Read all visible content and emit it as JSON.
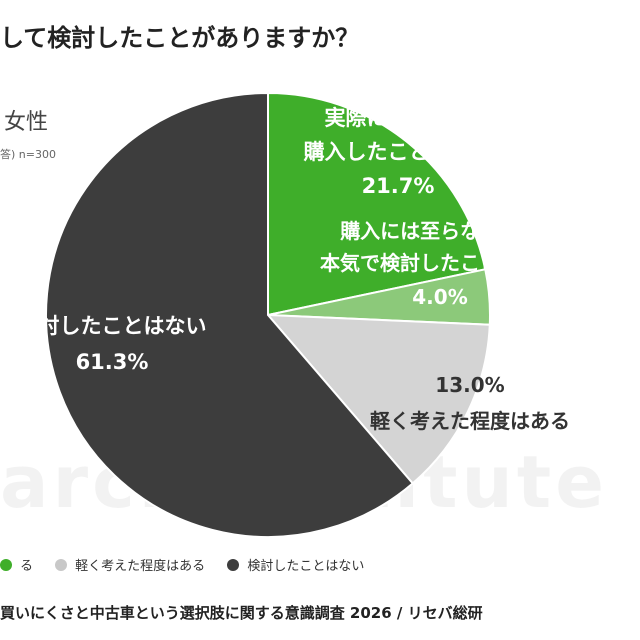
{
  "title": "して検討したことがありますか？",
  "group_label": "女性",
  "note": "答) n=300",
  "watermark": "arch Institute",
  "chart_data": {
    "type": "pie",
    "title": "して検討したことがありますか？",
    "slices": [
      {
        "label": "実際に中古車を購入したことがある",
        "label_lines": [
          "実際に中古車を",
          "購入したことがある"
        ],
        "value": 21.7,
        "value_text": "21.7%",
        "color": "#3fae2a",
        "text_color": "#ffffff"
      },
      {
        "label": "購入には至らないが、本気で検討したことがある",
        "label_lines": [
          "購入には至らないが、",
          "本気で検討したことがある"
        ],
        "value": 4.0,
        "value_text": "4.0%",
        "color": "#8cc97a",
        "text_color": "#ffffff"
      },
      {
        "label": "軽く考えた程度はある",
        "label_lines": [
          "軽く考えた程度はある"
        ],
        "value": 13.0,
        "value_text": "13.0%",
        "color": "#d4d4d4",
        "text_color": "#333333"
      },
      {
        "label": "検討したことはない",
        "label_lines": [
          "検討したことはない"
        ],
        "value": 61.3,
        "value_text": "61.3%",
        "color": "#3d3d3d",
        "text_color": "#ffffff"
      }
    ],
    "legend": {
      "placement": "bottom",
      "items": [
        {
          "label": "る",
          "color": "#3fae2a"
        },
        {
          "label": "軽く考えた程度はある",
          "color": "#c8c8c8"
        },
        {
          "label": "検討したことはない",
          "color": "#3d3d3d"
        }
      ]
    }
  },
  "footer": "買いにくさと中古車という選択肢に関する意識調査 2026 / リセバ総研"
}
